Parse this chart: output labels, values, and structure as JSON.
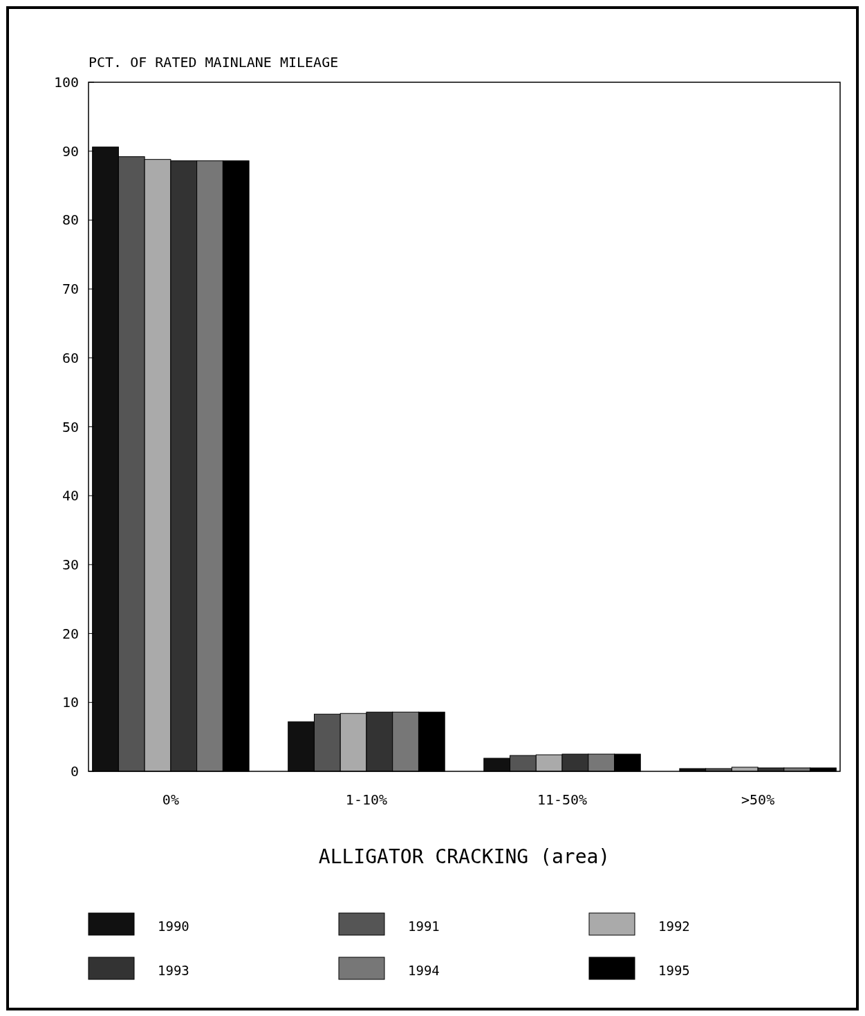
{
  "chart_data": {
    "type": "bar",
    "ylabel": "PCT. OF RATED MAINLANE MILEAGE",
    "xlabel": "ALLIGATOR CRACKING (area)",
    "categories": [
      "0%",
      "1-10%",
      "11-50%",
      ">50%"
    ],
    "series": [
      {
        "name": "1990",
        "color": "#111111",
        "values": [
          90.6,
          7.2,
          1.9,
          0.4
        ]
      },
      {
        "name": "1991",
        "color": "#555555",
        "values": [
          89.2,
          8.3,
          2.3,
          0.4
        ]
      },
      {
        "name": "1992",
        "color": "#aaaaaa",
        "values": [
          88.8,
          8.4,
          2.4,
          0.6
        ]
      },
      {
        "name": "1993",
        "color": "#333333",
        "values": [
          88.6,
          8.6,
          2.5,
          0.5
        ]
      },
      {
        "name": "1994",
        "color": "#777777",
        "values": [
          88.6,
          8.6,
          2.5,
          0.5
        ]
      },
      {
        "name": "1995",
        "color": "#000000",
        "values": [
          88.6,
          8.6,
          2.5,
          0.5
        ]
      }
    ],
    "ylim": [
      0,
      100
    ],
    "yticks": [
      0,
      10,
      20,
      30,
      40,
      50,
      60,
      70,
      80,
      90,
      100
    ],
    "grid": false,
    "legend": "bottom"
  }
}
